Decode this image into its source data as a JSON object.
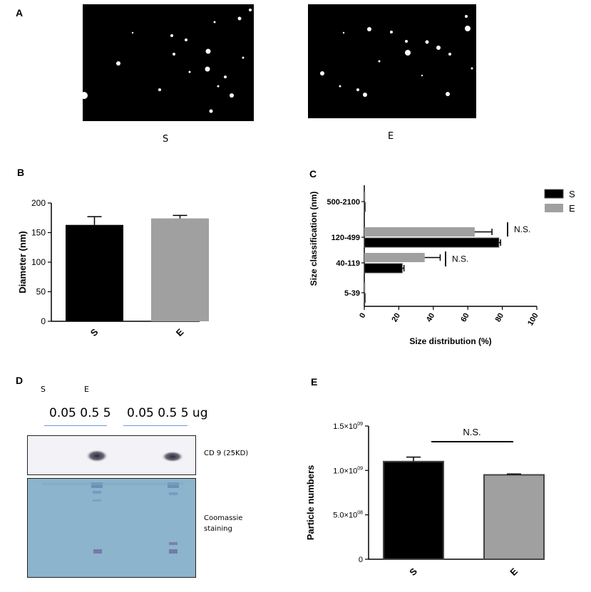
{
  "figure": {
    "panels": [
      "A",
      "B",
      "C",
      "D",
      "E"
    ]
  },
  "panel_a": {
    "label": "A",
    "images": [
      {
        "caption": "S"
      },
      {
        "caption": "E"
      }
    ]
  },
  "chart_data": [
    {
      "panel": "B",
      "type": "bar",
      "categories": [
        "S",
        "E"
      ],
      "values": [
        163,
        174
      ],
      "errors": [
        14,
        5
      ],
      "ylabel": "Diameter (nm)",
      "ylim": [
        0,
        200
      ],
      "yticks": [
        "0",
        "50",
        "100",
        "150",
        "200"
      ],
      "colors": [
        "#000000",
        "#a0a0a0"
      ],
      "grid": false
    },
    {
      "panel": "C",
      "type": "bar",
      "orientation": "horizontal",
      "categories": [
        "500-2100",
        "120-499",
        "40-119",
        "5-39"
      ],
      "series": [
        {
          "name": "S",
          "values": [
            0.5,
            78,
            22,
            0.3
          ],
          "errors": [
            0,
            1,
            1,
            0
          ]
        },
        {
          "name": "E",
          "values": [
            0.5,
            64,
            35,
            0.5
          ],
          "errors": [
            0,
            10,
            9,
            0
          ]
        }
      ],
      "xlabel": "Size distribution (%)",
      "ylabel": "Size classification (nm)",
      "xlim": [
        0,
        100
      ],
      "xticks": [
        "0",
        "20",
        "40",
        "60",
        "80",
        "100"
      ],
      "annotations": [
        "N.S.",
        "N.S."
      ],
      "legend": {
        "position": "top-right",
        "entries": [
          "S",
          "E"
        ]
      },
      "colors": [
        "#000000",
        "#a0a0a0"
      ]
    },
    {
      "panel": "E",
      "type": "bar",
      "categories": [
        "S",
        "E"
      ],
      "values": [
        1100000000.0,
        950000000.0
      ],
      "errors": [
        50000000.0,
        10000000.0
      ],
      "ylabel": "Particle numbers",
      "ylim": [
        0,
        1500000000.0
      ],
      "yticks": [
        {
          "base": "0",
          "exp": ""
        },
        {
          "base": "5.0×10",
          "exp": "08"
        },
        {
          "base": "1.0×10",
          "exp": "09"
        },
        {
          "base": "1.5×10",
          "exp": "09"
        }
      ],
      "yticks_values": [
        0,
        500000000.0,
        1000000000.0,
        1500000000.0
      ],
      "annotation": "N.S.",
      "colors": [
        "#000000",
        "#a0a0a0"
      ]
    }
  ],
  "panel_d": {
    "label": "D",
    "lane_groups": [
      "S",
      "E"
    ],
    "loading_left": "0.05 0.5 5",
    "loading_right": "0.05 0.5 5 ug",
    "blot_label": "CD 9 (25KD)",
    "gel_label_line1": "Coomassie",
    "gel_label_line2": "staining"
  }
}
